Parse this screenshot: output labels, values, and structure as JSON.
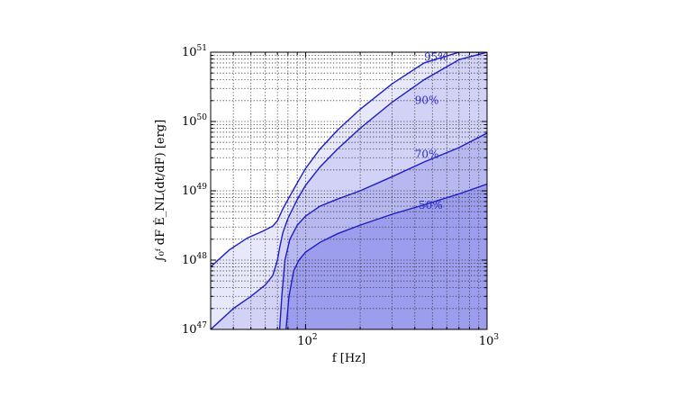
{
  "chart_data": {
    "type": "area",
    "xscale": "log",
    "yscale": "log",
    "xlim": [
      30,
      1000
    ],
    "ylim": [
      1e+47,
      1e+51
    ],
    "grid": true,
    "xlabel": "f [Hz]",
    "ylabel": "∫₀ᶠ dF Ė_NL(dt/dF) [erg]",
    "xticks": [
      {
        "value": 100,
        "base": "10",
        "exp": "2"
      },
      {
        "value": 1000,
        "base": "10",
        "exp": "3"
      }
    ],
    "yticks": [
      {
        "value": 1e+47,
        "base": "10",
        "exp": "47"
      },
      {
        "value": 1e+48,
        "base": "10",
        "exp": "48"
      },
      {
        "value": 1e+49,
        "base": "10",
        "exp": "49"
      },
      {
        "value": 1e+50,
        "base": "10",
        "exp": "50"
      },
      {
        "value": 1e+51,
        "base": "10",
        "exp": "51"
      }
    ],
    "fill_colors": [
      "#e8e8fb",
      "#d2d2f6",
      "#b8b8f1",
      "#9d9ded"
    ],
    "line_color": "#1d1dc4",
    "series": [
      {
        "name": "95%",
        "label_x": 450,
        "label_y": 7.5e+50,
        "x": [
          30,
          38,
          48,
          58,
          66,
          70,
          75,
          80,
          90,
          100,
          120,
          150,
          200,
          300,
          450,
          700,
          1000
        ],
        "y": [
          8e+47,
          1.4e+48,
          2.1e+48,
          2.6e+48,
          3.1e+48,
          3.7e+48,
          5.5e+48,
          7.5e+48,
          1.3e+49,
          2.1e+49,
          4e+49,
          7.5e+49,
          1.5e+50,
          3.5e+50,
          7e+50,
          1e+51,
          1e+51
        ]
      },
      {
        "name": "90%",
        "label_x": 400,
        "label_y": 1.8e+50,
        "x": [
          30,
          40,
          50,
          60,
          66,
          70,
          72,
          75,
          80,
          90,
          100,
          120,
          150,
          200,
          300,
          450,
          700,
          1000
        ],
        "y": [
          1e+47,
          2e+47,
          3e+47,
          4.4e+47,
          6e+47,
          1e+48,
          1.5e+48,
          2.5e+48,
          4e+48,
          7.5e+48,
          1.2e+49,
          2.2e+49,
          4e+49,
          8e+49,
          1.9e+50,
          4e+50,
          7.8e+50,
          1e+51
        ]
      },
      {
        "name": "70%",
        "label_x": 400,
        "label_y": 3e+49,
        "x": [
          72,
          74,
          77,
          82,
          90,
          100,
          120,
          150,
          200,
          300,
          450,
          700,
          1000
        ],
        "y": [
          1e+47,
          3e+47,
          1e+48,
          2e+48,
          3.2e+48,
          4.3e+48,
          6e+48,
          7.6e+48,
          1e+49,
          1.6e+49,
          2.6e+49,
          4.2e+49,
          6.8e+49
        ]
      },
      {
        "name": "50%",
        "label_x": 420,
        "label_y": 5.5e+48,
        "x": [
          78,
          81,
          86,
          92,
          100,
          120,
          150,
          200,
          300,
          450,
          700,
          1000
        ],
        "y": [
          1e+47,
          3e+47,
          7e+47,
          1e+48,
          1.3e+48,
          1.8e+48,
          2.4e+48,
          3.2e+48,
          4.6e+48,
          6.3e+48,
          9e+48,
          1.25e+49
        ]
      }
    ]
  }
}
